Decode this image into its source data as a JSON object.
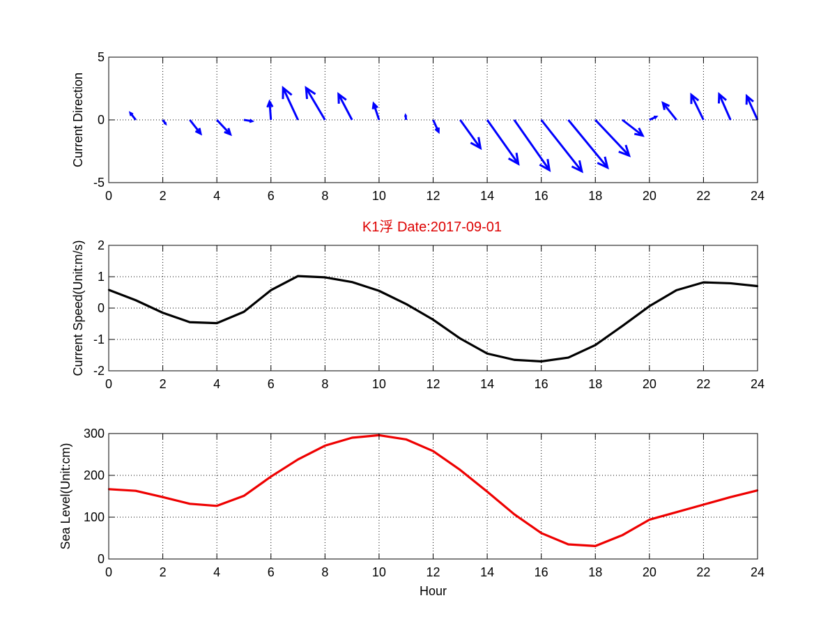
{
  "figure_title": "K1浮    Date:2017-09-01",
  "colors": {
    "arrows": "#0000ff",
    "speed_line": "#000000",
    "sea_level_line": "#ee0000",
    "title": "#dd0000",
    "grid": "#000000"
  },
  "chart_data": [
    {
      "type": "quiver",
      "ylabel": "Current Direction",
      "xlabel": "",
      "xlim": [
        0,
        24
      ],
      "ylim": [
        -5,
        5
      ],
      "xticks": [
        0,
        2,
        4,
        6,
        8,
        10,
        12,
        14,
        16,
        18,
        20,
        22,
        24
      ],
      "yticks": [
        -5,
        0,
        5
      ],
      "grid": true,
      "series": [
        {
          "x": [
            1,
            2,
            3,
            4,
            5,
            6,
            7,
            8,
            9,
            10,
            11,
            12,
            13,
            14,
            15,
            16,
            17,
            18,
            19,
            20,
            21,
            22,
            23,
            24
          ],
          "y": [
            0,
            0,
            0,
            0,
            0,
            0,
            0,
            0,
            0,
            0,
            0,
            0,
            0,
            0,
            0,
            0,
            0,
            0,
            0,
            0,
            0,
            0,
            0,
            0
          ],
          "u": [
            -0.2,
            0.1,
            0.4,
            0.5,
            0.3,
            -0.05,
            -0.55,
            -0.7,
            -0.5,
            -0.2,
            -0.02,
            0.2,
            0.75,
            1.15,
            1.3,
            1.5,
            1.45,
            1.25,
            0.75,
            0.25,
            -0.5,
            -0.45,
            -0.42,
            -0.4
          ],
          "v": [
            0.55,
            -0.3,
            -1.1,
            -1.15,
            -0.1,
            1.45,
            2.55,
            2.55,
            2.05,
            1.3,
            0.35,
            -0.95,
            -2.25,
            -3.5,
            -4.0,
            -4.1,
            -3.8,
            -2.85,
            -1.25,
            0.25,
            1.35,
            2.0,
            2.05,
            1.9
          ]
        }
      ]
    },
    {
      "type": "line",
      "title": "K1浮    Date:2017-09-01",
      "ylabel": "Current Speed(Unit:m/s)",
      "xlabel": "",
      "xlim": [
        0,
        24
      ],
      "ylim": [
        -2,
        2
      ],
      "xticks": [
        0,
        2,
        4,
        6,
        8,
        10,
        12,
        14,
        16,
        18,
        20,
        22,
        24
      ],
      "yticks": [
        -2,
        -1,
        0,
        1,
        2
      ],
      "grid": true,
      "series": [
        {
          "x": [
            0,
            1,
            2,
            3,
            4,
            5,
            6,
            7,
            8,
            9,
            10,
            11,
            12,
            13,
            14,
            15,
            16,
            17,
            18,
            19,
            20,
            21,
            22,
            23,
            24
          ],
          "values": [
            0.58,
            0.25,
            -0.15,
            -0.45,
            -0.48,
            -0.12,
            0.57,
            1.02,
            0.98,
            0.83,
            0.55,
            0.13,
            -0.37,
            -0.97,
            -1.45,
            -1.65,
            -1.7,
            -1.58,
            -1.18,
            -0.57,
            0.06,
            0.57,
            0.82,
            0.79,
            0.7
          ]
        }
      ]
    },
    {
      "type": "line",
      "ylabel": "Sea Level(Unit:cm)",
      "xlabel": "Hour",
      "xlim": [
        0,
        24
      ],
      "ylim": [
        0,
        300
      ],
      "xticks": [
        0,
        2,
        4,
        6,
        8,
        10,
        12,
        14,
        16,
        18,
        20,
        22,
        24
      ],
      "yticks": [
        0,
        100,
        200,
        300
      ],
      "grid": true,
      "series": [
        {
          "x": [
            0,
            1,
            2,
            3,
            4,
            5,
            6,
            7,
            8,
            9,
            10,
            11,
            12,
            13,
            14,
            15,
            16,
            17,
            18,
            19,
            20,
            21,
            22,
            23,
            24
          ],
          "values": [
            167,
            163,
            148,
            132,
            127,
            151,
            197,
            238,
            271,
            290,
            296,
            286,
            258,
            213,
            161,
            107,
            62,
            35,
            31,
            57,
            94,
            112,
            130,
            148,
            164
          ]
        }
      ]
    }
  ]
}
